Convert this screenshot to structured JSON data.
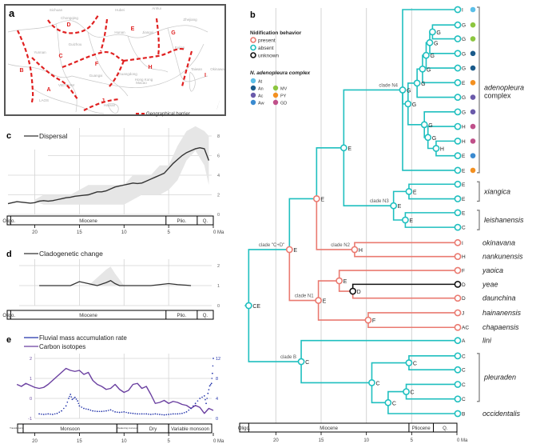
{
  "panel_labels": {
    "a": "a",
    "b": "b",
    "c": "c",
    "d": "d",
    "e": "e"
  },
  "colors": {
    "teal": "#1fbfbf",
    "salmon": "#ea7a70",
    "black": "#111111",
    "barrier": "#e02020",
    "grid": "#d4d4d4",
    "band": "#e6e6e6",
    "line_dark": "#333333",
    "fluvial": "#2233aa",
    "carbon": "#6a3fa0",
    "axis_label": "#666666"
  },
  "chart_data": [
    {
      "id": "map",
      "type": "map",
      "panel": "a",
      "provinces": [
        "Sichuan",
        "Chongqing",
        "Hubei",
        "Anhui",
        "Zhejiang",
        "Hunan",
        "Jiangxi",
        "Guizhou",
        "Yunnan",
        "Fujian",
        "Guangxi",
        "Guangdong",
        "Hong Kong",
        "Macao",
        "VIETNAM",
        "LAOS",
        "Hainan",
        "Taiwan",
        "Okinawa"
      ],
      "regions": [
        "A",
        "B",
        "C",
        "D",
        "E",
        "F",
        "G",
        "H",
        "I",
        "J"
      ],
      "legend": "Geographical barrier"
    },
    {
      "id": "dispersal",
      "type": "area",
      "panel": "c",
      "legend": "Dispersal",
      "xlim": [
        23,
        0
      ],
      "ylim": [
        0,
        8
      ],
      "xticks": [
        20,
        15,
        10,
        5,
        0
      ],
      "xtick_labels": [
        "20",
        "15",
        "10",
        "5",
        "0 Ma"
      ],
      "yticks": [
        0,
        2,
        4,
        6,
        8
      ],
      "x": [
        23,
        22.5,
        22,
        21.5,
        21,
        20.5,
        20,
        19.5,
        19,
        18.5,
        18,
        17.5,
        17,
        16.5,
        16,
        15.5,
        15,
        14.5,
        14,
        13.5,
        13,
        12.5,
        12,
        11.5,
        11,
        10.5,
        10,
        9.5,
        9,
        8.5,
        8,
        7.5,
        7,
        6.5,
        6,
        5.5,
        5,
        4.5,
        4,
        3.5,
        3,
        2.5,
        2,
        1.5,
        1,
        0.5
      ],
      "y": [
        1.1,
        1.2,
        1.3,
        1.25,
        1.2,
        1.15,
        1.2,
        1.35,
        1.4,
        1.35,
        1.4,
        1.5,
        1.6,
        1.7,
        1.75,
        1.85,
        1.9,
        1.95,
        2.0,
        2.15,
        2.3,
        2.3,
        2.4,
        2.6,
        2.8,
        2.9,
        3.0,
        3.1,
        3.2,
        3.15,
        3.2,
        3.4,
        3.6,
        3.8,
        4.0,
        4.2,
        4.7,
        5.2,
        5.6,
        6.0,
        6.3,
        6.5,
        6.7,
        6.8,
        6.7,
        5.5
      ],
      "ci_x": [
        20,
        19,
        18,
        17,
        16,
        15,
        14,
        13,
        12,
        11,
        10,
        9,
        8,
        7,
        6,
        5,
        4.5,
        4,
        3,
        2,
        1,
        0.5
      ],
      "ci_low": [
        1.3,
        1.0,
        1.0,
        1.0,
        1.0,
        1.0,
        1.0,
        1.0,
        1.0,
        1.0,
        1.0,
        1.5,
        2.0,
        2.0,
        2.0,
        2.5,
        3.0,
        3.5,
        5.5,
        6.5,
        5.0,
        3.0
      ],
      "ci_high": [
        1.5,
        2.0,
        2.0,
        2.0,
        2.0,
        2.5,
        3.0,
        3.0,
        3.0,
        3.0,
        3.0,
        4.0,
        4.0,
        4.0,
        5.0,
        5.0,
        6.0,
        7.0,
        8.5,
        9.0,
        8.5,
        8.0
      ],
      "epochs": [
        {
          "label": "Oligo.",
          "start": 23,
          "end": 23
        },
        {
          "label": "Miocene",
          "start": 23,
          "end": 5.3
        },
        {
          "label": "Plio.",
          "start": 5.3,
          "end": 2.6
        },
        {
          "label": "Q.",
          "start": 2.6,
          "end": 0
        }
      ]
    },
    {
      "id": "cladogenetic",
      "type": "line",
      "panel": "d",
      "legend": "Cladogenetic change",
      "xlim": [
        23,
        0
      ],
      "ylim": [
        0,
        2
      ],
      "xticks": [
        20,
        15,
        10,
        5,
        0
      ],
      "xtick_labels": [
        "20",
        "15",
        "10",
        "5",
        "0 Ma"
      ],
      "yticks": [
        0,
        1,
        2
      ],
      "x": [
        19.5,
        18,
        17,
        16,
        15,
        14,
        13,
        12,
        11.5,
        11,
        10.5,
        10,
        9,
        8,
        7,
        6,
        5,
        4,
        3,
        2.5
      ],
      "y": [
        1.0,
        1.0,
        1.0,
        1.0,
        1.2,
        1.1,
        1.0,
        1.15,
        1.25,
        1.1,
        1.0,
        1.0,
        1.0,
        1.0,
        1.0,
        1.05,
        1.1,
        1.05,
        1.02,
        1.0
      ],
      "ci_x": [
        14,
        13,
        12,
        11.5,
        11,
        10
      ],
      "ci_low": [
        1.0,
        1.0,
        1.0,
        1.0,
        1.0,
        1.0
      ],
      "ci_high": [
        1.0,
        1.4,
        1.8,
        1.95,
        1.6,
        1.0
      ],
      "epochs": [
        {
          "label": "Oligo.",
          "start": 23,
          "end": 23
        },
        {
          "label": "Miocene",
          "start": 23,
          "end": 5.3
        },
        {
          "label": "Plio.",
          "start": 5.3,
          "end": 2.6
        },
        {
          "label": "Q.",
          "start": 2.6,
          "end": 0
        }
      ]
    },
    {
      "id": "climate",
      "type": "line",
      "panel": "e",
      "xlim": [
        23,
        0
      ],
      "xticks": [
        20,
        15,
        10,
        5,
        0
      ],
      "xtick_labels": [
        "20",
        "15",
        "10",
        "5",
        "0 Ma"
      ],
      "left_ylim": [
        -1,
        2
      ],
      "left_yticks": [
        -1,
        0,
        1,
        2
      ],
      "right_ylim": [
        0,
        12
      ],
      "right_yticks": [
        0,
        4,
        8,
        12
      ],
      "series": [
        {
          "name": "Carbon isotopes",
          "axis": "left",
          "x": [
            22,
            21.5,
            21,
            20.5,
            20,
            19.5,
            19,
            18.5,
            18,
            17.5,
            17,
            16.5,
            16,
            15.5,
            15,
            14.5,
            14,
            13.5,
            13,
            12.5,
            12,
            11.5,
            11,
            10.5,
            10,
            9.5,
            9,
            8.5,
            8,
            7.5,
            7,
            6.5,
            6,
            5.5,
            5,
            4.5,
            4,
            3.5,
            3,
            2.5,
            2,
            1.5,
            1,
            0.5,
            0
          ],
          "y": [
            0.7,
            0.6,
            0.75,
            0.65,
            0.55,
            0.5,
            0.55,
            0.7,
            0.9,
            1.1,
            1.3,
            1.5,
            1.4,
            1.35,
            1.4,
            1.2,
            1.3,
            0.9,
            0.7,
            0.6,
            0.45,
            0.5,
            0.7,
            0.45,
            0.3,
            0.4,
            0.7,
            0.75,
            0.5,
            0.6,
            0.2,
            -0.25,
            -0.2,
            -0.1,
            -0.25,
            -0.15,
            -0.2,
            -0.3,
            -0.35,
            -0.5,
            -0.35,
            -0.45,
            -0.75,
            -0.5,
            -0.6
          ]
        },
        {
          "name": "Fluvial mass accumulation rate",
          "axis": "right",
          "x": [
            19.5,
            19,
            18.5,
            18,
            17.5,
            17,
            16.5,
            16.2,
            16,
            15.8,
            15.5,
            15.2,
            15,
            14.5,
            14,
            13.5,
            13,
            12.5,
            12,
            11.5,
            11,
            10.5,
            10,
            9.5,
            9,
            8.5,
            8,
            7.5,
            7,
            6.5,
            6,
            5.5,
            5,
            4.5,
            4,
            3.5,
            3,
            2.5,
            2,
            1.5,
            1,
            0.8,
            0.6,
            0.4,
            0.2,
            0.1,
            0
          ],
          "y": [
            0.9,
            0.8,
            0.9,
            0.8,
            1.0,
            1.5,
            2.5,
            4.0,
            4.8,
            3.8,
            4.2,
            3.5,
            2.5,
            2.0,
            1.8,
            1.5,
            1.4,
            1.4,
            1.5,
            1.7,
            1.3,
            1.2,
            1.3,
            1.1,
            1.0,
            0.9,
            0.9,
            0.9,
            0.8,
            0.9,
            0.8,
            0.7,
            0.8,
            0.9,
            0.9,
            1.0,
            1.3,
            2.0,
            3.0,
            4.0,
            4.5,
            3.0,
            5.0,
            6.5,
            7.0,
            9.0,
            12.0
          ]
        }
      ],
      "phases": [
        {
          "label": "Transitional monsoon",
          "start": 22.5,
          "end": 21.3,
          "small": true
        },
        {
          "label": "Monsoon",
          "start": 21.3,
          "end": 10.8
        },
        {
          "label": "Weakening monsoon",
          "start": 10.8,
          "end": 8.5,
          "small": true
        },
        {
          "label": "Dry",
          "start": 8.5,
          "end": 5
        },
        {
          "label": "Variable monsoon",
          "start": 5,
          "end": 0
        }
      ]
    },
    {
      "id": "phylogeny",
      "type": "tree",
      "panel": "b",
      "xlim": [
        24,
        0
      ],
      "xticks": [
        20,
        15,
        10,
        5,
        0
      ],
      "xtick_labels": [
        "20",
        "15",
        "10",
        "5",
        "0 Ma"
      ],
      "epochs": [
        {
          "label": "Oligo.",
          "start": 24,
          "end": 23
        },
        {
          "label": "Miocene",
          "start": 23,
          "end": 5.3
        },
        {
          "label": "Pliocene",
          "start": 5.3,
          "end": 2.6
        },
        {
          "label": "Q.",
          "start": 2.6,
          "end": 0
        }
      ],
      "legend_nidification": {
        "title": "Nidification behavior",
        "items": [
          {
            "label": "present",
            "color": "salmon"
          },
          {
            "label": "absent",
            "color": "teal"
          },
          {
            "label": "unknown",
            "color": "black"
          }
        ]
      },
      "legend_complex": {
        "title": "N. adenopleura complex",
        "items": [
          {
            "label": "At",
            "color": "#5bbfe8"
          },
          {
            "label": "An",
            "color": "#1a5a8a"
          },
          {
            "label": "Ac",
            "color": "#6a5aaa"
          },
          {
            "label": "Aw",
            "color": "#3a8ad0"
          },
          {
            "label": "MV",
            "color": "#8cc63f"
          },
          {
            "label": "PY",
            "color": "#f39020"
          },
          {
            "label": "GD",
            "color": "#c0508a"
          }
        ]
      },
      "tips": [
        {
          "state": "I",
          "dot": "#5bbfe8",
          "clade": "adenopleura"
        },
        {
          "state": "G",
          "dot": "#8cc63f",
          "clade": "adenopleura"
        },
        {
          "state": "G",
          "dot": "#8cc63f",
          "clade": "adenopleura"
        },
        {
          "state": "G",
          "dot": "#1a5a8a",
          "clade": "adenopleura"
        },
        {
          "state": "G",
          "dot": "#1a5a8a",
          "clade": "adenopleura"
        },
        {
          "state": "E",
          "dot": "#f39020",
          "clade": "adenopleura"
        },
        {
          "state": "G",
          "dot": "#6a5aaa",
          "clade": "adenopleura"
        },
        {
          "state": "G",
          "dot": "#6a5aaa",
          "clade": "adenopleura"
        },
        {
          "state": "H",
          "dot": "#c0508a",
          "clade": "adenopleura"
        },
        {
          "state": "H",
          "dot": "#c0508a",
          "clade": "adenopleura"
        },
        {
          "state": "E",
          "dot": "#3a8ad0",
          "clade": "adenopleura"
        },
        {
          "state": "E",
          "dot": "#f39020",
          "clade": "adenopleura"
        },
        {
          "state": "E",
          "clade": "xiangica"
        },
        {
          "state": "E",
          "clade": "xiangica"
        },
        {
          "state": "E",
          "clade": "leishanensis"
        },
        {
          "state": "C",
          "clade": "leishanensis"
        },
        {
          "state": "I",
          "clade": "okinavana"
        },
        {
          "state": "H",
          "clade": "nankunensis"
        },
        {
          "state": "F",
          "clade": "yaoica"
        },
        {
          "state": "D",
          "clade": "yeae"
        },
        {
          "state": "D",
          "clade": "daunchina"
        },
        {
          "state": "J",
          "clade": "hainanensis"
        },
        {
          "state": "AC",
          "clade": "chapaensis"
        },
        {
          "state": "A",
          "clade": "lini"
        },
        {
          "state": "C",
          "clade": "pleuraden"
        },
        {
          "state": "C",
          "clade": "pleuraden"
        },
        {
          "state": "C",
          "clade": "pleuraden"
        },
        {
          "state": "C",
          "clade": "pleuraden"
        },
        {
          "state": "B",
          "clade": "occidentalis"
        }
      ],
      "clade_labels": [
        {
          "text": "adenopleura",
          "italic": true
        },
        {
          "text": "complex",
          "italic": false
        },
        {
          "text": "xiangica"
        },
        {
          "text": "leishanensis"
        },
        {
          "text": "okinavana"
        },
        {
          "text": "nankunensis"
        },
        {
          "text": "yaoica"
        },
        {
          "text": "yeae"
        },
        {
          "text": "daunchina"
        },
        {
          "text": "hainanensis"
        },
        {
          "text": "chapaensis"
        },
        {
          "text": "lini"
        },
        {
          "text": "pleuraden"
        },
        {
          "text": "occidentalis"
        }
      ],
      "node_labels": [
        "clade N4",
        "clade N3",
        "clade \"C+D\"",
        "clade N2",
        "clade N1",
        "clade B",
        "clade A"
      ]
    }
  ]
}
